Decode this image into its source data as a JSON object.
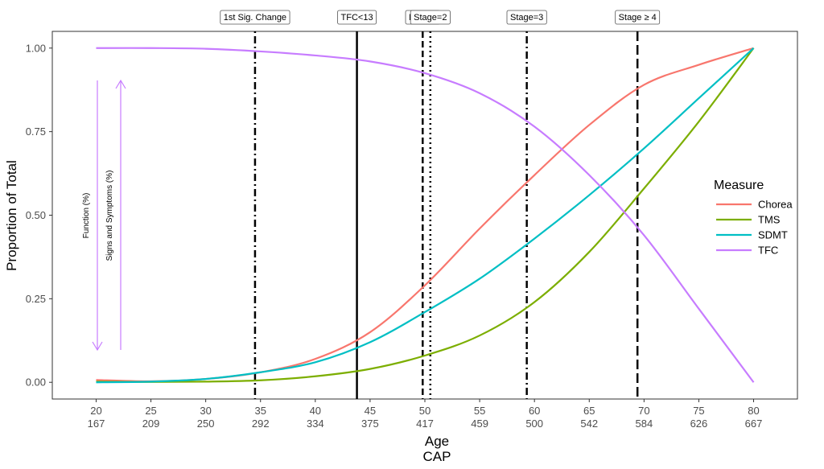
{
  "chart_data": {
    "type": "line",
    "xlabel": "Age",
    "xlabel2": "CAP",
    "ylabel": "Proportion of Total",
    "xlim": [
      16,
      84
    ],
    "ylim": [
      -0.05,
      1.05
    ],
    "x_ticks": [
      {
        "age": "20",
        "cap": "167"
      },
      {
        "age": "25",
        "cap": "209"
      },
      {
        "age": "30",
        "cap": "250"
      },
      {
        "age": "35",
        "cap": "292"
      },
      {
        "age": "40",
        "cap": "334"
      },
      {
        "age": "45",
        "cap": "375"
      },
      {
        "age": "50",
        "cap": "417"
      },
      {
        "age": "55",
        "cap": "459"
      },
      {
        "age": "60",
        "cap": "500"
      },
      {
        "age": "65",
        "cap": "542"
      },
      {
        "age": "70",
        "cap": "584"
      },
      {
        "age": "75",
        "cap": "626"
      },
      {
        "age": "80",
        "cap": "667"
      }
    ],
    "y_ticks": [
      "0.00",
      "0.25",
      "0.50",
      "0.75",
      "1.00"
    ],
    "grid": false,
    "legend": {
      "title": "Measure",
      "position": "right"
    },
    "series": [
      {
        "name": "Chorea",
        "color": "#F8766D",
        "x": [
          20,
          25,
          30,
          35,
          40,
          45,
          50,
          55,
          60,
          65,
          70,
          75,
          80
        ],
        "y": [
          0.007,
          0.003,
          0.01,
          0.03,
          0.07,
          0.15,
          0.29,
          0.46,
          0.62,
          0.77,
          0.89,
          0.95,
          1.0
        ]
      },
      {
        "name": "TMS",
        "color": "#7CAE00",
        "x": [
          20,
          25,
          30,
          35,
          40,
          45,
          50,
          55,
          60,
          65,
          70,
          75,
          80
        ],
        "y": [
          0.002,
          0.001,
          0.002,
          0.006,
          0.018,
          0.04,
          0.08,
          0.14,
          0.24,
          0.39,
          0.58,
          0.78,
          1.0
        ]
      },
      {
        "name": "SDMT",
        "color": "#00BFC4",
        "x": [
          20,
          25,
          30,
          35,
          40,
          45,
          50,
          55,
          60,
          65,
          70,
          75,
          80
        ],
        "y": [
          0.0,
          0.002,
          0.01,
          0.03,
          0.06,
          0.12,
          0.21,
          0.31,
          0.43,
          0.56,
          0.7,
          0.85,
          1.0
        ]
      },
      {
        "name": "TFC",
        "color": "#C77CFF",
        "x": [
          20,
          25,
          30,
          35,
          40,
          45,
          50,
          55,
          60,
          65,
          70,
          75,
          80
        ],
        "y": [
          1.0,
          1.0,
          0.998,
          0.99,
          0.978,
          0.96,
          0.925,
          0.865,
          0.765,
          0.62,
          0.44,
          0.22,
          0.0
        ]
      }
    ],
    "vlines": [
      {
        "label": "1st Sig. Change",
        "x": 34.5,
        "style": "dotdash"
      },
      {
        "label": "TFC<13",
        "x": 43.8,
        "style": "solid"
      },
      {
        "label": "DCL=4",
        "x": 49.8,
        "style": "dashed"
      },
      {
        "label": "Stage=2",
        "x": 50.5,
        "style": "dotted"
      },
      {
        "label": "Stage=3",
        "x": 59.3,
        "style": "dotdash"
      },
      {
        "label": "Stage ≥ 4",
        "x": 69.4,
        "style": "longdash"
      }
    ],
    "annotations": [
      {
        "text": "Function (%)",
        "direction": "down",
        "color": "#C77CFF"
      },
      {
        "text": "Signs and Symptoms (%)",
        "direction": "up",
        "color": "#C77CFF"
      }
    ]
  }
}
